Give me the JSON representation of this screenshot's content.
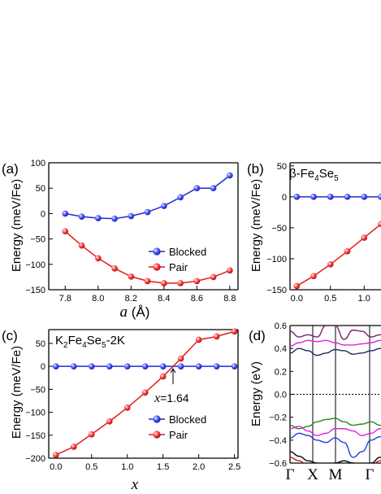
{
  "colors": {
    "blocked": "#1f2bd6",
    "pair": "#e41a1c",
    "band_purple": "#7a1f6e",
    "band_navy": "#1c2a5c",
    "band_magenta": "#e020e0",
    "band_green": "#1e8a1e",
    "band_blue": "#1a3fe0",
    "band_black": "#000000",
    "band_red": "#c8141e"
  },
  "panels": {
    "a": {
      "label": "(a)",
      "xlabel_var": "a",
      "xlabel_unit": " (Å)",
      "ylabel": "Energy (meV/Fe)",
      "legend_blocked": "Blocked",
      "legend_pair": "Pair"
    },
    "b": {
      "label": "(b)",
      "title_main": "β-Fe",
      "title_sub1": "4",
      "title_mid": "Se",
      "title_sub2": "5",
      "ylabel": "Energy (meV/Fe)"
    },
    "c": {
      "label": "(c)",
      "t1": "K",
      "t1s": "2",
      "t2": "Fe",
      "t2s": "4",
      "t3": "Se",
      "t3s": "5",
      "t4": "-2K",
      "annotation_var": "x",
      "annotation_val": "=1.64",
      "xlabel": "x",
      "ylabel": "Energy (meV/Fe)",
      "legend_blocked": "Blocked",
      "legend_pair": "Pair"
    },
    "d": {
      "label": "(d)",
      "ylabel": "Energy (eV)",
      "kpoints": [
        "Γ",
        "X",
        "M",
        "Γ"
      ]
    }
  },
  "chart_data": [
    {
      "panel": "a",
      "type": "line",
      "xlabel": "a (Å)",
      "ylabel": "Energy (meV/Fe)",
      "xlim": [
        7.7,
        8.85
      ],
      "ylim": [
        -150,
        100
      ],
      "xticks": [
        7.8,
        8.0,
        8.2,
        8.4,
        8.6,
        8.8
      ],
      "yticks": [
        -150,
        -100,
        -50,
        0,
        50,
        100
      ],
      "series": [
        {
          "name": "Blocked",
          "x": [
            7.8,
            7.9,
            8.0,
            8.1,
            8.2,
            8.3,
            8.4,
            8.5,
            8.6,
            8.7,
            8.8
          ],
          "values": [
            0,
            -6,
            -9,
            -10,
            -5,
            3,
            15,
            32,
            50,
            50,
            75
          ]
        },
        {
          "name": "Pair",
          "x": [
            7.8,
            7.9,
            8.0,
            8.1,
            8.2,
            8.3,
            8.4,
            8.5,
            8.6,
            8.7,
            8.8
          ],
          "values": [
            -35,
            -63,
            -88,
            -108,
            -124,
            -133,
            -137,
            -137,
            -133,
            -125,
            -112
          ]
        }
      ]
    },
    {
      "panel": "b",
      "type": "line",
      "xlabel": "",
      "ylabel": "Energy (meV/Fe)",
      "xlim": [
        -0.1,
        1.25
      ],
      "ylim": [
        -150,
        55
      ],
      "xticks": [
        0.0,
        0.5,
        1.0
      ],
      "yticks": [
        -150,
        -100,
        -50,
        0,
        50
      ],
      "series": [
        {
          "name": "Blocked",
          "x": [
            0.0,
            0.25,
            0.5,
            0.75,
            1.0,
            1.25
          ],
          "values": [
            0,
            0,
            0,
            0,
            0,
            0
          ]
        },
        {
          "name": "Pair",
          "x": [
            0.0,
            0.25,
            0.5,
            0.75,
            1.0,
            1.25
          ],
          "values": [
            -144,
            -128,
            -109,
            -88,
            -66,
            -44
          ]
        }
      ]
    },
    {
      "panel": "c",
      "type": "line",
      "xlabel": "x",
      "ylabel": "Energy (meV/Fe)",
      "xlim": [
        -0.1,
        2.55
      ],
      "ylim": [
        -200,
        80
      ],
      "xticks": [
        0.0,
        0.5,
        1.0,
        1.5,
        2.0,
        2.5
      ],
      "yticks": [
        -200,
        -150,
        -100,
        -50,
        0,
        50
      ],
      "annotation": {
        "text": "x=1.64",
        "x": 1.64
      },
      "series": [
        {
          "name": "Blocked",
          "x": [
            0,
            0.25,
            0.5,
            0.75,
            1.0,
            1.25,
            1.5,
            1.75,
            2.0,
            2.25,
            2.5
          ],
          "values": [
            0,
            0,
            0,
            0,
            0,
            0,
            0,
            0,
            0,
            0,
            0
          ]
        },
        {
          "name": "Pair",
          "x": [
            0,
            0.25,
            0.5,
            0.75,
            1.0,
            1.25,
            1.5,
            1.75,
            2.0,
            2.25,
            2.5
          ],
          "values": [
            -193,
            -175,
            -148,
            -120,
            -90,
            -57,
            -22,
            17,
            58,
            65,
            76
          ]
        }
      ]
    },
    {
      "panel": "d",
      "type": "line",
      "xlabel": "",
      "ylabel": "Energy (eV)",
      "ylim": [
        -0.6,
        0.6
      ],
      "yticks": [
        -0.6,
        -0.4,
        -0.2,
        0.0,
        0.2,
        0.4,
        0.6
      ],
      "xticks": [
        "Γ",
        "X",
        "M",
        "Γ"
      ],
      "fermi_level": 0.0,
      "series": [
        {
          "color": "band_purple",
          "values": [
            0.55,
            0.5,
            0.52,
            0.5,
            0.6,
            0.6,
            0.48,
            0.56,
            0.55,
            0.5,
            0.52,
            0.6
          ]
        },
        {
          "color": "band_magenta",
          "values": [
            0.42,
            0.45,
            0.47,
            0.46,
            0.47,
            0.45,
            0.43,
            0.43,
            0.44,
            0.45,
            0.47,
            0.5
          ]
        },
        {
          "color": "band_navy",
          "values": [
            0.36,
            0.4,
            0.38,
            0.34,
            0.36,
            0.39,
            0.38,
            0.35,
            0.36,
            0.38,
            0.4,
            0.42
          ]
        },
        {
          "color": "band_green",
          "values": [
            -0.27,
            -0.3,
            -0.28,
            -0.24,
            -0.22,
            -0.21,
            -0.24,
            -0.27,
            -0.26,
            -0.24,
            -0.27,
            -0.3
          ]
        },
        {
          "color": "band_magenta",
          "values": [
            -0.3,
            -0.28,
            -0.32,
            -0.36,
            -0.34,
            -0.3,
            -0.3,
            -0.32,
            -0.36,
            -0.34,
            -0.3,
            -0.28
          ]
        },
        {
          "color": "band_blue",
          "values": [
            -0.38,
            -0.34,
            -0.36,
            -0.4,
            -0.42,
            -0.38,
            -0.42,
            -0.55,
            -0.5,
            -0.4,
            -0.37,
            -0.35
          ]
        },
        {
          "color": "band_black",
          "values": [
            -0.5,
            -0.54,
            -0.58,
            -0.6,
            -0.62,
            -0.6,
            -0.58,
            -0.6,
            -0.62,
            -0.6,
            -0.55,
            -0.5
          ]
        },
        {
          "color": "band_red",
          "values": [
            -0.55,
            -0.58,
            -0.62,
            -0.62,
            -0.62,
            -0.62,
            -0.62,
            -0.62,
            -0.62,
            -0.62,
            -0.58,
            -0.54
          ]
        }
      ]
    }
  ]
}
